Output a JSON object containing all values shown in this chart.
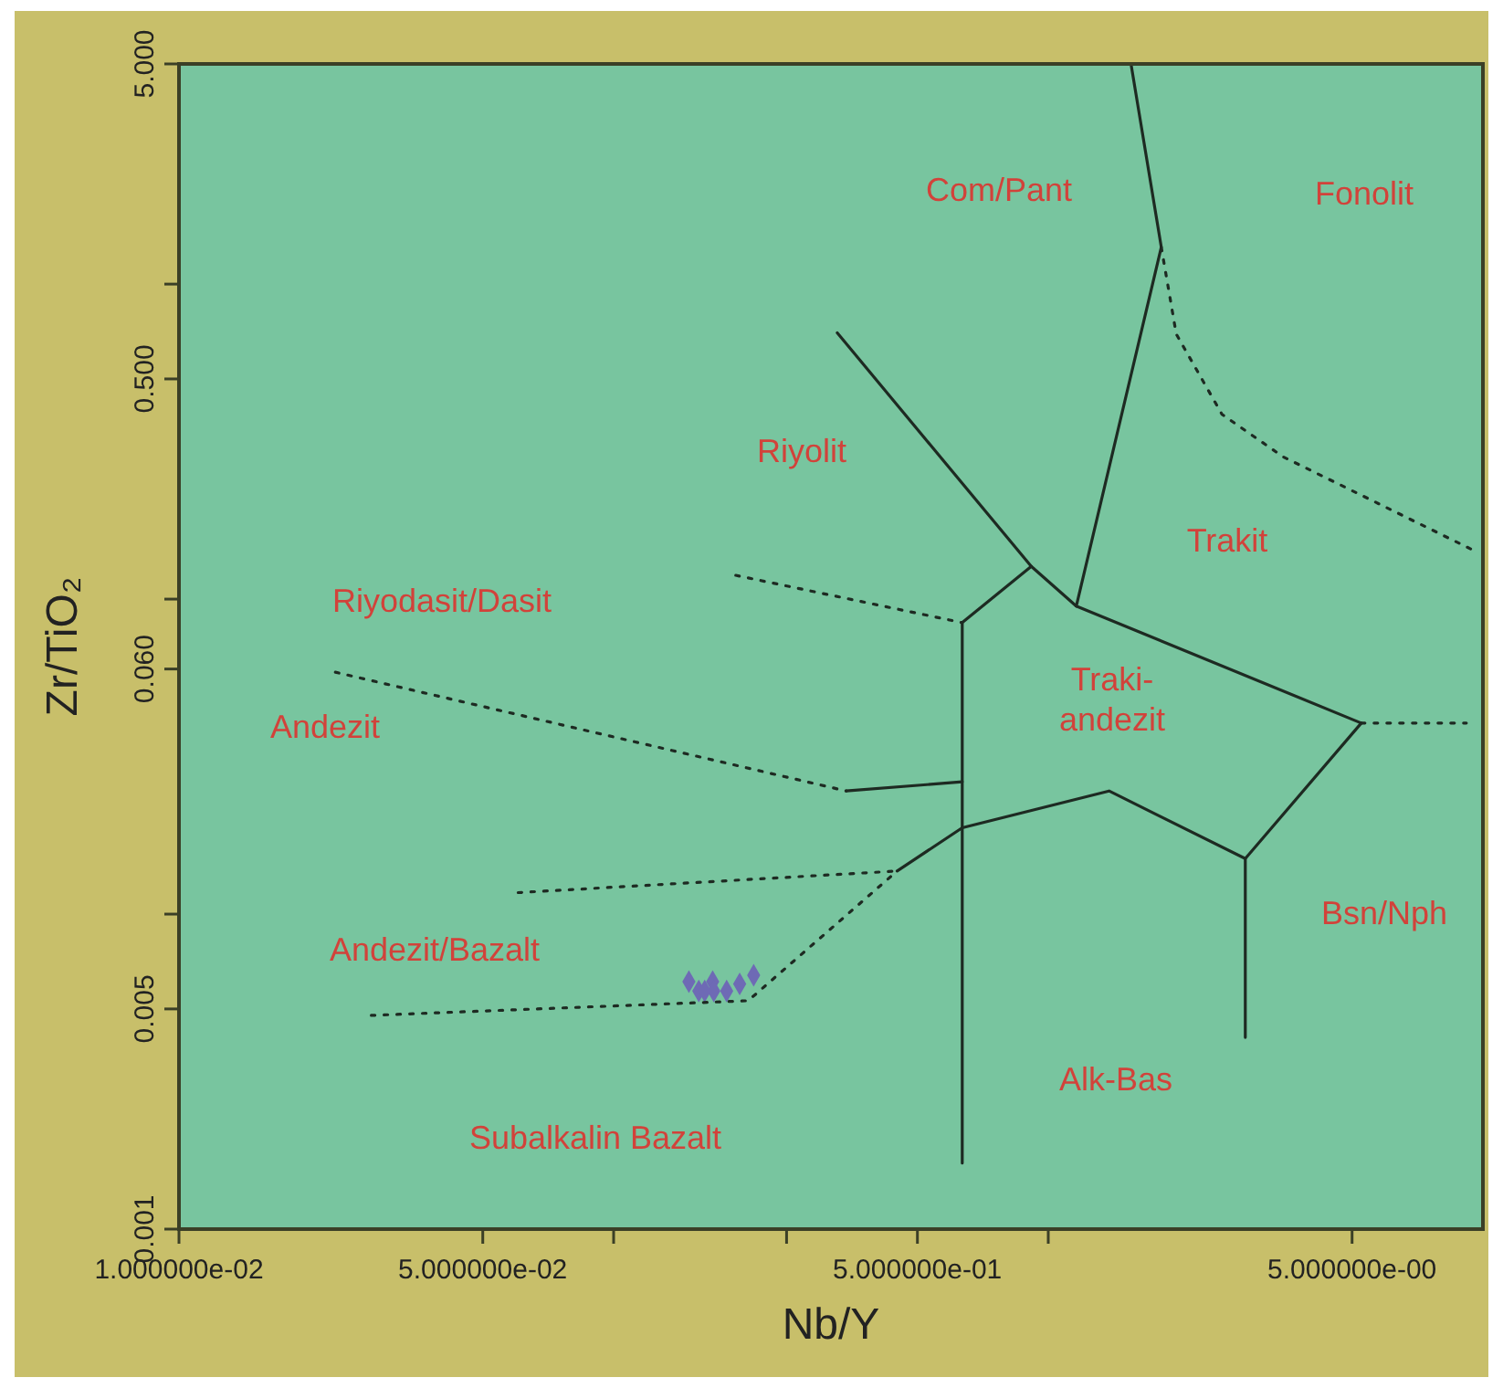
{
  "chart_data": {
    "type": "scatter",
    "xlabel": "Nb/Y",
    "ylabel": "Zr/TiO₂",
    "log": "xy",
    "grid": false,
    "xlim": [
      0.01,
      10
    ],
    "ylim": [
      0.001,
      5
    ],
    "xticks": [
      {
        "value": 0.01,
        "label": "1.000000e-02"
      },
      {
        "value": 0.05,
        "label": "5.000000e-02"
      },
      {
        "value": 0.1,
        "label": null
      },
      {
        "value": 0.25,
        "label": null
      },
      {
        "value": 0.5,
        "label": "5.000000e-01"
      },
      {
        "value": 1,
        "label": null
      },
      {
        "value": 5,
        "label": "5.000000e-00"
      }
    ],
    "yticks": [
      {
        "value": 0.001,
        "label": "0.001"
      },
      {
        "value": 0.005,
        "label": "0.005"
      },
      {
        "value": 0.01,
        "label": null
      },
      {
        "value": 0.06,
        "label": "0.060"
      },
      {
        "value": 0.1,
        "label": null
      },
      {
        "value": 0.5,
        "label": "0.500"
      },
      {
        "value": 1,
        "label": null
      },
      {
        "value": 5,
        "label": "5.000"
      }
    ],
    "series": [
      {
        "marker": "diamond",
        "color": "#6e6ab5",
        "x": [
          0.149,
          0.157,
          0.169,
          0.17,
          0.182,
          0.195,
          0.21,
          0.162
        ],
        "values": [
          0.0061,
          0.0057,
          0.0061,
          0.0057,
          0.0057,
          0.006,
          0.0064,
          0.0057
        ]
      },
      {
        "type": "line",
        "line_style": "solid",
        "color": "#1e2a22",
        "x": [
          1.55,
          1.82,
          1.16,
          5.25
        ],
        "values": [
          5.0,
          1.31,
          0.095,
          0.0404
        ]
      },
      {
        "type": "line",
        "line_style": "solid",
        "color": "#1e2a22",
        "x": [
          0.327,
          0.914,
          1.16
        ],
        "values": [
          0.7,
          0.127,
          0.095
        ]
      },
      {
        "type": "line",
        "line_style": "solid",
        "color": "#1e2a22",
        "x": [
          0.914,
          0.634,
          0.634
        ],
        "values": [
          0.127,
          0.0842,
          0.00162
        ]
      },
      {
        "type": "line",
        "line_style": "solid",
        "color": "#1e2a22",
        "x": [
          5.25,
          2.84,
          2.84
        ],
        "values": [
          0.0404,
          0.015,
          0.00406
        ]
      },
      {
        "type": "line",
        "line_style": "solid",
        "color": "#1e2a22",
        "x": [
          2.84,
          1.38,
          0.634,
          0.449
        ],
        "values": [
          0.015,
          0.0246,
          0.0188,
          0.0137
        ]
      },
      {
        "type": "line",
        "line_style": "solid",
        "color": "#1e2a22",
        "x": [
          0.343,
          0.634
        ],
        "values": [
          0.0246,
          0.0263
        ]
      },
      {
        "type": "line",
        "line_style": "dotted",
        "color": "#1e2a22",
        "x": [
          1.82,
          1.97,
          2.51,
          3.47,
          9.6
        ],
        "values": [
          1.31,
          0.694,
          0.386,
          0.283,
          0.142
        ]
      },
      {
        "type": "line",
        "line_style": "dotted",
        "color": "#1e2a22",
        "x": [
          0.191,
          0.634
        ],
        "values": [
          0.119,
          0.0842
        ]
      },
      {
        "type": "line",
        "line_style": "dotted",
        "color": "#1e2a22",
        "x": [
          0.0229,
          0.343
        ],
        "values": [
          0.0586,
          0.0246
        ]
      },
      {
        "type": "line",
        "line_style": "dotted",
        "color": "#1e2a22",
        "x": [
          0.0603,
          0.449
        ],
        "values": [
          0.0117,
          0.0137
        ]
      },
      {
        "type": "line",
        "line_style": "dotted",
        "color": "#1e2a22",
        "x": [
          0.0277,
          0.204,
          0.449
        ],
        "values": [
          0.00477,
          0.00531,
          0.0137
        ]
      },
      {
        "type": "line",
        "line_style": "dotted",
        "color": "#1e2a22",
        "x": [
          5.25,
          9.16
        ],
        "values": [
          0.0404,
          0.0404
        ]
      }
    ],
    "annotations": [
      "Com/Pant",
      "Fonolit",
      "Riyolit",
      "Trakit",
      "Riyodasit/Dasit",
      "Andezit",
      "Traki-\nandezit",
      "Andezit/Bazalt",
      "Bsn/Nph",
      "Alk-Bas",
      "Subalkalin Bazalt"
    ]
  }
}
